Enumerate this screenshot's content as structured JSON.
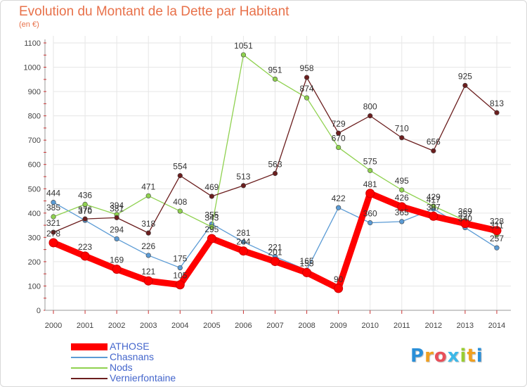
{
  "chart_data": {
    "type": "line",
    "title": "Evolution du Montant de la Dette par Habitant",
    "subtitle": "(en €)",
    "x": [
      "2000",
      "2001",
      "2002",
      "2003",
      "2004",
      "2005",
      "2006",
      "2007",
      "2008",
      "2009",
      "2010",
      "2011",
      "2012",
      "2013",
      "2014"
    ],
    "ylim": [
      0,
      1100
    ],
    "yticks": [
      0,
      100,
      200,
      300,
      400,
      500,
      600,
      700,
      800,
      900,
      1000,
      1100
    ],
    "grid": true,
    "legend_placement": "bottom-left",
    "series": [
      {
        "name": "Chasnans",
        "color": "#5b9bd5",
        "values": [
          444,
          370,
          294,
          226,
          175,
          355,
          281,
          221,
          165,
          422,
          360,
          365,
          417,
          340,
          257
        ]
      },
      {
        "name": "Nods",
        "color": "#8fd14f",
        "values": [
          385,
          436,
          394,
          471,
          408,
          343,
          1051,
          951,
          874,
          670,
          575,
          495,
          429,
          369,
          311
        ]
      },
      {
        "name": "Vernierfontaine",
        "color": "#6b1e1e",
        "values": [
          321,
          376,
          381,
          318,
          554,
          469,
          513,
          563,
          958,
          729,
          800,
          710,
          656,
          925,
          813
        ]
      },
      {
        "name": "ATHOSE",
        "color": "#ff0000",
        "values": [
          278,
          223,
          169,
          121,
          105,
          295,
          244,
          201,
          155,
          90,
          481,
          426,
          387,
          357,
          328
        ]
      }
    ],
    "legend": [
      "ATHOSE",
      "Chasnans",
      "Nods",
      "Vernierfontaine"
    ]
  },
  "logo": {
    "letters": [
      "P",
      "r",
      "o",
      "x",
      "i",
      "t",
      "i"
    ],
    "colors": [
      "#2a8fd8",
      "#f0a020",
      "#e8505a",
      "#3cb8e8",
      "#9acd32",
      "#f0a020",
      "#2a8fd8"
    ]
  }
}
